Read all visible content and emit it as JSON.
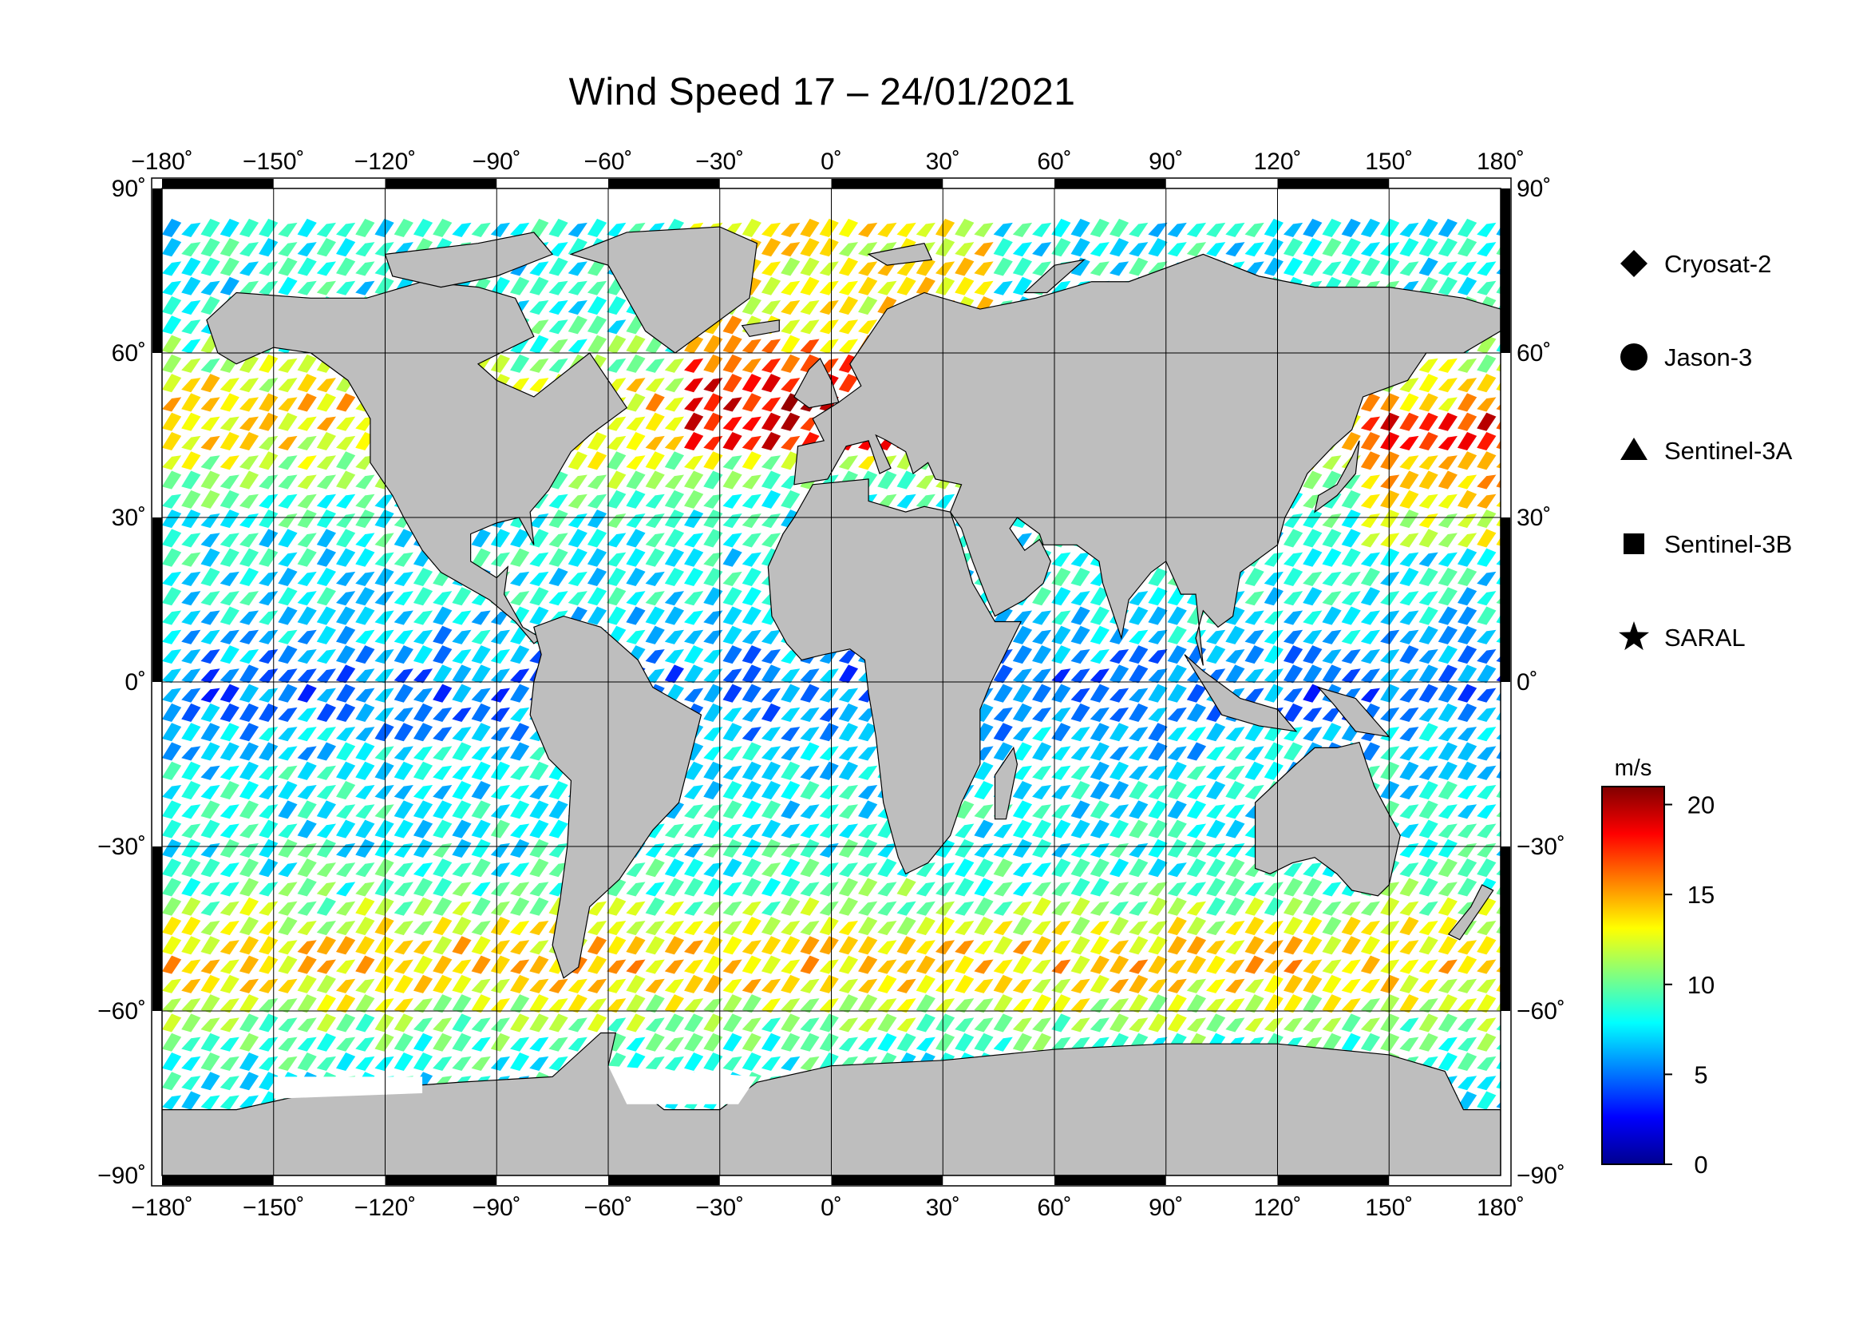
{
  "title": "Wind Speed 17 – 24/01/2021",
  "map": {
    "lon_ticks": [
      -180,
      -150,
      -120,
      -90,
      -60,
      -30,
      0,
      30,
      60,
      90,
      120,
      150,
      180
    ],
    "lat_ticks": [
      90,
      60,
      30,
      0,
      -30,
      -60,
      -90
    ],
    "lon_labels": [
      "−180˚",
      "−150˚",
      "−120˚",
      "−90˚",
      "−60˚",
      "−30˚",
      "0˚",
      "30˚",
      "60˚",
      "90˚",
      "120˚",
      "150˚",
      "180˚"
    ],
    "lat_labels": [
      "90˚",
      "60˚",
      "30˚",
      "0˚",
      "−30˚",
      "−60˚",
      "−90˚"
    ],
    "land_color": "#bebebe",
    "ice_color": "#ffffff"
  },
  "legend": {
    "satellites": [
      {
        "name": "Cryosat-2",
        "symbol": "diamond"
      },
      {
        "name": "Jason-3",
        "symbol": "circle"
      },
      {
        "name": "Sentinel-3A",
        "symbol": "triangle"
      },
      {
        "name": "Sentinel-3B",
        "symbol": "square"
      },
      {
        "name": "SARAL",
        "symbol": "star"
      }
    ]
  },
  "colorbar": {
    "unit": "m/s",
    "min": 0,
    "max": 21,
    "tick_values": [
      0,
      5,
      10,
      15,
      20
    ],
    "tick_labels": [
      "0",
      "5",
      "10",
      "15",
      "20"
    ],
    "colors": [
      "#00008f",
      "#0000ff",
      "#0080ff",
      "#00ffff",
      "#80ff80",
      "#ffff00",
      "#ff8000",
      "#ff0000",
      "#800000"
    ]
  }
}
